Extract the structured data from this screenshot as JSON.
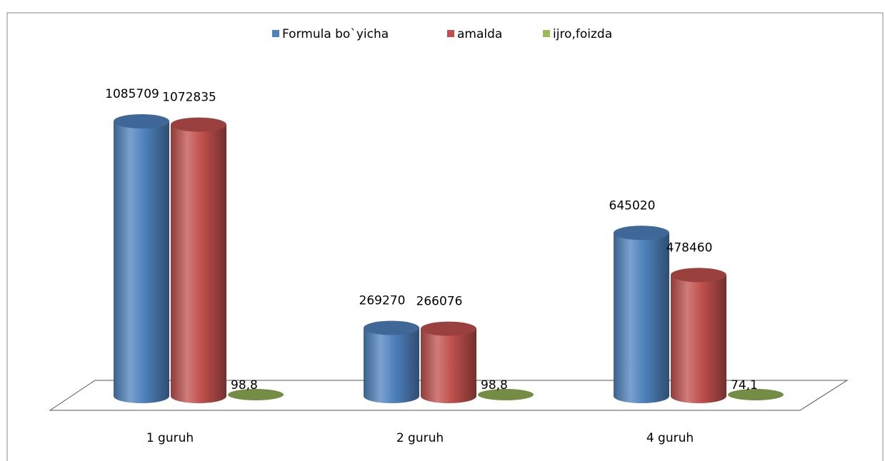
{
  "chart_data": {
    "type": "bar",
    "categories": [
      "1 guruh",
      "2 guruh",
      "4 guruh"
    ],
    "series": [
      {
        "name": "Formula bo`yicha",
        "color": "#4f81bd",
        "values": [
          1085709,
          269270,
          645020
        ]
      },
      {
        "name": "amalda",
        "color": "#c0504d",
        "values": [
          1072835,
          266076,
          478460
        ]
      },
      {
        "name": "ijro,foizda",
        "color": "#9bbb59",
        "values": [
          98.8,
          98.8,
          74.1
        ],
        "value_labels": [
          "98,8",
          "98,8",
          "74,1"
        ]
      }
    ],
    "legend": "top"
  }
}
